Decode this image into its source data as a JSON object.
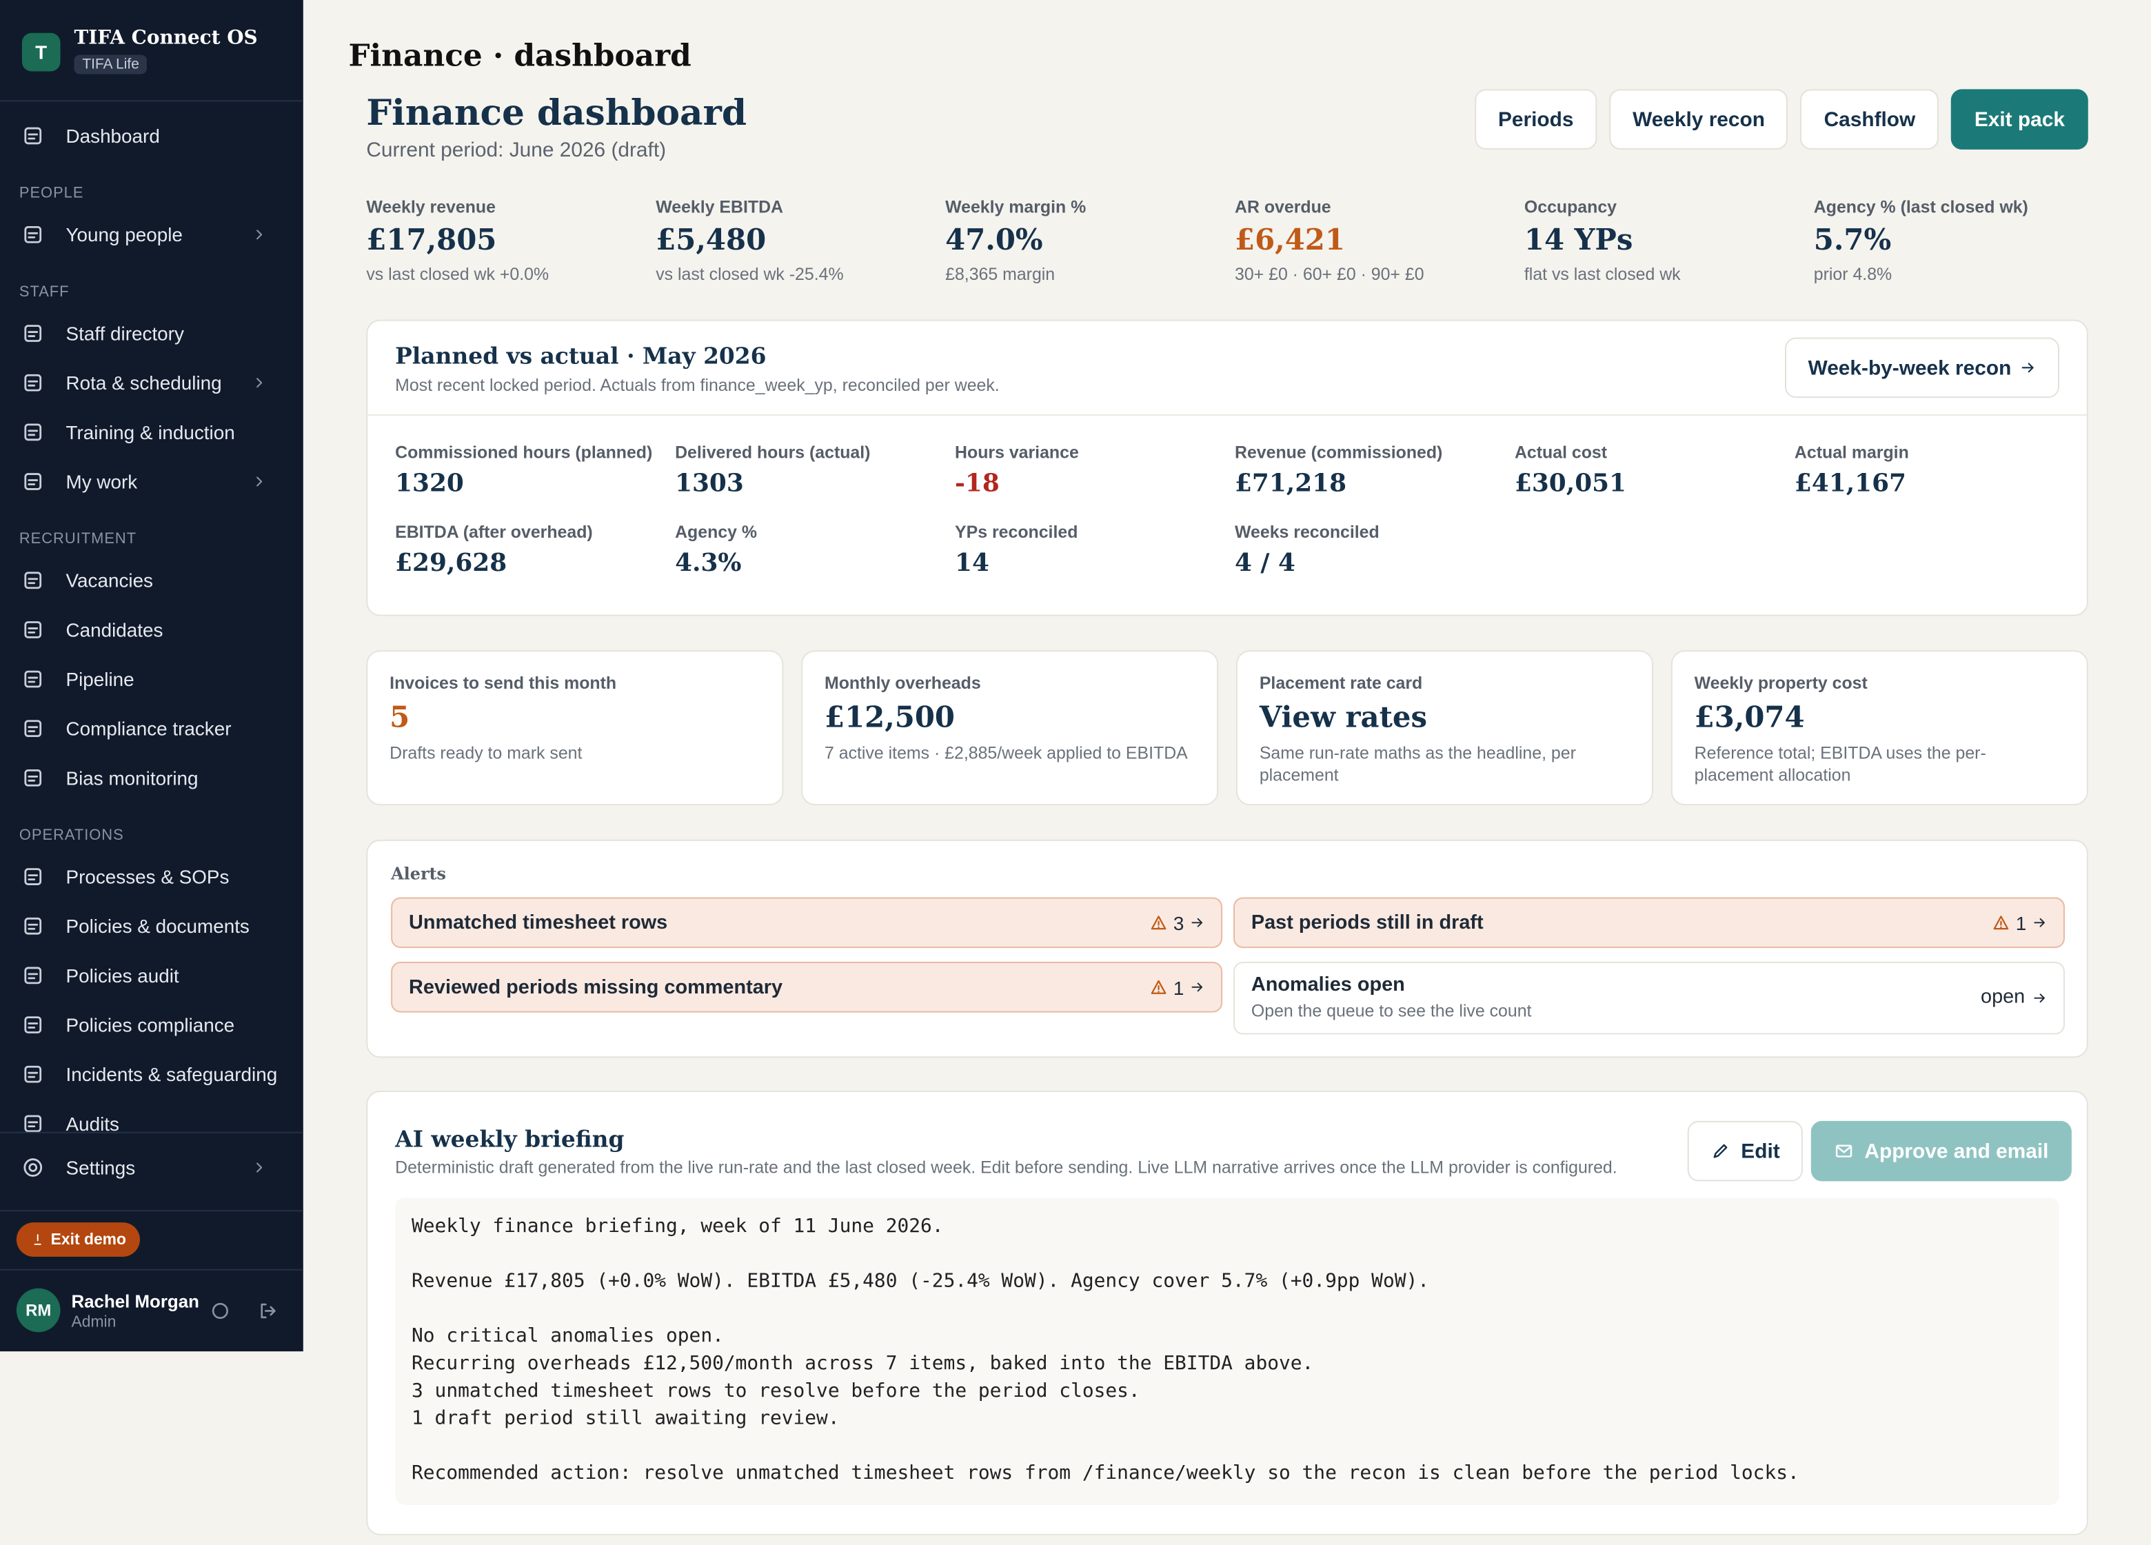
{
  "sidebar": {
    "brand": {
      "initial": "T",
      "name": "TIFA Connect OS",
      "tag": "TIFA Life"
    },
    "top": [
      {
        "label": "Dashboard"
      }
    ],
    "sections": [
      {
        "heading": "PEOPLE",
        "items": [
          {
            "label": "Young people",
            "submenu": true
          }
        ]
      },
      {
        "heading": "STAFF",
        "items": [
          {
            "label": "Staff directory"
          },
          {
            "label": "Rota & scheduling",
            "submenu": true
          },
          {
            "label": "Training & induction"
          },
          {
            "label": "My work",
            "submenu": true
          }
        ]
      },
      {
        "heading": "RECRUITMENT",
        "items": [
          {
            "label": "Vacancies"
          },
          {
            "label": "Candidates"
          },
          {
            "label": "Pipeline"
          },
          {
            "label": "Compliance tracker"
          },
          {
            "label": "Bias monitoring"
          }
        ]
      },
      {
        "heading": "OPERATIONS",
        "items": [
          {
            "label": "Processes & SOPs"
          },
          {
            "label": "Policies & documents"
          },
          {
            "label": "Policies audit"
          },
          {
            "label": "Policies compliance"
          },
          {
            "label": "Incidents & safeguarding"
          },
          {
            "label": "Audits"
          }
        ]
      }
    ],
    "settings": "Settings",
    "exit": "Exit demo",
    "user": {
      "initials": "RM",
      "name": "Rachel Morgan",
      "role": "Admin"
    }
  },
  "page_title": "Finance · dashboard",
  "header": {
    "title": "Finance dashboard",
    "subtitle": "Current period: June 2026 (draft)",
    "buttons": [
      "Periods",
      "Weekly recon",
      "Cashflow",
      "Exit pack"
    ]
  },
  "kpis": [
    {
      "label": "Weekly revenue",
      "value": "£17,805",
      "note": "vs last closed wk +0.0%"
    },
    {
      "label": "Weekly EBITDA",
      "value": "£5,480",
      "note": "vs last closed wk -25.4%"
    },
    {
      "label": "Weekly margin %",
      "value": "47.0%",
      "note": "£8,365 margin"
    },
    {
      "label": "AR overdue",
      "value": "£6,421",
      "note": "30+ £0 · 60+ £0 · 90+ £0",
      "color": "#c05a17"
    },
    {
      "label": "Occupancy",
      "value": "14 YPs",
      "note": "flat vs last closed wk"
    },
    {
      "label": "Agency % (last closed wk)",
      "value": "5.7%",
      "note": "prior 4.8%"
    }
  ],
  "planned": {
    "title": "Planned vs actual · May 2026",
    "subtitle": "Most recent locked period. Actuals from finance_week_yp, reconciled per week.",
    "button": "Week-by-week recon",
    "metrics": [
      {
        "label": "Commissioned hours (planned)",
        "value": "1320"
      },
      {
        "label": "Delivered hours (actual)",
        "value": "1303"
      },
      {
        "label": "Hours variance",
        "value": "-18",
        "color": "#b3261e"
      },
      {
        "label": "Revenue (commissioned)",
        "value": "£71,218"
      },
      {
        "label": "Actual cost",
        "value": "£30,051"
      },
      {
        "label": "Actual margin",
        "value": "£41,167"
      },
      {
        "label": "EBITDA (after overhead)",
        "value": "£29,628"
      },
      {
        "label": "Agency %",
        "value": "4.3%"
      },
      {
        "label": "YPs reconciled",
        "value": "14"
      },
      {
        "label": "Weeks reconciled",
        "value": "4 / 4"
      }
    ]
  },
  "cards": [
    {
      "label": "Invoices to send this month",
      "value": "5",
      "note": "Drafts ready to mark sent",
      "color": "#c05a17"
    },
    {
      "label": "Monthly overheads",
      "value": "£12,500",
      "note": "7 active items · £2,885/week applied to EBITDA"
    },
    {
      "label": "Placement rate card",
      "value": "View rates",
      "note": "Same run-rate maths as the headline, per placement"
    },
    {
      "label": "Weekly property cost",
      "value": "£3,074",
      "note": "Reference total; EBITDA uses the per-placement allocation"
    }
  ],
  "alerts": {
    "heading": "Alerts",
    "items": [
      {
        "label": "Unmatched timesheet rows",
        "count": "3"
      },
      {
        "label": "Past periods still in draft",
        "count": "1"
      },
      {
        "label": "Reviewed periods missing commentary",
        "count": "1"
      }
    ],
    "anomalies": {
      "label": "Anomalies open",
      "note": "Open the queue to see the live count",
      "action": "open"
    }
  },
  "briefing": {
    "title": "AI weekly briefing",
    "subtitle": "Deterministic draft generated from the live run-rate and the last closed week. Edit before sending. Live LLM narrative arrives once the LLM provider is configured.",
    "edit": "Edit",
    "approve": "Approve and email",
    "paragraphs": [
      [
        "Weekly finance briefing, week of 11 June 2026."
      ],
      [
        "Revenue £17,805 (+0.0% WoW). EBITDA £5,480 (-25.4% WoW). Agency cover 5.7% (+0.9pp WoW)."
      ],
      [
        "No critical anomalies open.",
        "Recurring overheads £12,500/month across 7 items, baked into the EBITDA above.",
        "3 unmatched timesheet rows to resolve before the period closes.",
        "1 draft period still awaiting review."
      ],
      [
        "Recommended action: resolve unmatched timesheet rows from /finance/weekly so the recon is clean before the period locks."
      ]
    ]
  }
}
